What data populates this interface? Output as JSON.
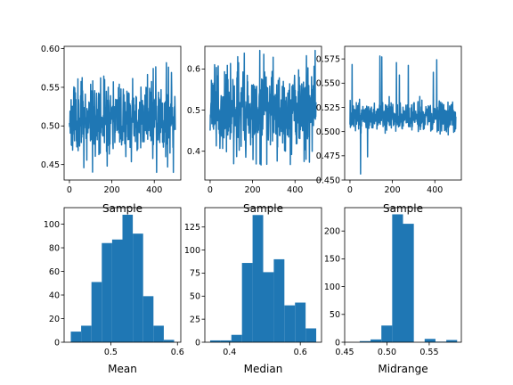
{
  "figure": {
    "background": "#ffffff",
    "series_color": "#1f77b4",
    "axis_color": "#000000"
  },
  "chart_data": [
    {
      "type": "line",
      "xlabel": "Sample",
      "ylabel": "",
      "title": "",
      "xlim": [
        -25,
        525
      ],
      "ylim": [
        0.43,
        0.603
      ],
      "xticks": [
        0,
        200,
        400
      ],
      "xtick_labels": [
        "0",
        "200",
        "400"
      ],
      "yticks": [
        0.45,
        0.5,
        0.55,
        0.6
      ],
      "ytick_labels": [
        "0.45",
        "0.50",
        "0.55",
        "0.60"
      ],
      "n_samples": 500,
      "center": 0.51,
      "spread": 0.022,
      "range": [
        0.44,
        0.595
      ],
      "seed": 11
    },
    {
      "type": "line",
      "xlabel": "Sample",
      "ylabel": "",
      "title": "",
      "xlim": [
        -25,
        525
      ],
      "ylim": [
        0.33,
        0.655
      ],
      "xticks": [
        0,
        200,
        400
      ],
      "xtick_labels": [
        "0",
        "200",
        "400"
      ],
      "yticks": [
        0.4,
        0.5,
        0.6
      ],
      "ytick_labels": [
        "0.4",
        "0.5",
        "0.6"
      ],
      "n_samples": 500,
      "center": 0.5,
      "spread": 0.045,
      "range": [
        0.345,
        0.645
      ],
      "seed": 23
    },
    {
      "type": "line",
      "xlabel": "Sample",
      "ylabel": "",
      "title": "",
      "xlim": [
        -25,
        525
      ],
      "ylim": [
        0.45,
        0.588
      ],
      "xticks": [
        0,
        200,
        400
      ],
      "xtick_labels": [
        "0",
        "200",
        "400"
      ],
      "yticks": [
        0.45,
        0.475,
        0.5,
        0.525,
        0.55,
        0.575
      ],
      "ytick_labels": [
        "0.450",
        "0.475",
        "0.500",
        "0.525",
        "0.550",
        "0.575"
      ],
      "n_samples": 500,
      "center": 0.515,
      "spread": 0.007,
      "range": [
        0.455,
        0.583
      ],
      "seed": 37
    },
    {
      "type": "bar",
      "xlabel": "Mean",
      "ylabel": "",
      "title": "",
      "xlim": [
        0.43,
        0.605
      ],
      "ylim": [
        0,
        114
      ],
      "xticks": [
        0.5,
        0.6
      ],
      "xtick_labels": [
        "0.5",
        "0.6"
      ],
      "yticks": [
        0,
        20,
        40,
        60,
        80,
        100
      ],
      "ytick_labels": [
        "0",
        "20",
        "40",
        "60",
        "80",
        "100"
      ],
      "bin_edges": [
        0.44,
        0.4555,
        0.471,
        0.4865,
        0.502,
        0.5175,
        0.533,
        0.5485,
        0.564,
        0.5795,
        0.595
      ],
      "counts": [
        9,
        14,
        51,
        84,
        87,
        108,
        92,
        39,
        14,
        2
      ]
    },
    {
      "type": "bar",
      "xlabel": "Median",
      "ylabel": "",
      "title": "",
      "xlim": [
        0.33,
        0.66
      ],
      "ylim": [
        0,
        146
      ],
      "xticks": [
        0.4,
        0.6
      ],
      "xtick_labels": [
        "0.4",
        "0.6"
      ],
      "yticks": [
        0,
        25,
        50,
        75,
        100,
        125
      ],
      "ytick_labels": [
        "0",
        "25",
        "50",
        "75",
        "100",
        "125"
      ],
      "bin_edges": [
        0.345,
        0.375,
        0.405,
        0.435,
        0.465,
        0.495,
        0.525,
        0.555,
        0.585,
        0.615,
        0.645
      ],
      "counts": [
        2,
        2,
        8,
        86,
        138,
        76,
        90,
        40,
        43,
        15
      ]
    },
    {
      "type": "bar",
      "xlabel": "Midrange",
      "ylabel": "",
      "title": "",
      "xlim": [
        0.45,
        0.588
      ],
      "ylim": [
        0,
        242
      ],
      "xticks": [
        0.45,
        0.5,
        0.55
      ],
      "xtick_labels": [
        "0.45",
        "0.50",
        "0.55"
      ],
      "yticks": [
        0,
        50,
        100,
        150,
        200
      ],
      "ytick_labels": [
        "0",
        "50",
        "100",
        "150",
        "200"
      ],
      "bin_edges": [
        0.455,
        0.4678,
        0.4806,
        0.4934,
        0.5062,
        0.519,
        0.5318,
        0.5446,
        0.5574,
        0.5702,
        0.583
      ],
      "counts": [
        0,
        2,
        5,
        30,
        230,
        213,
        0,
        6,
        1,
        4
      ]
    }
  ]
}
